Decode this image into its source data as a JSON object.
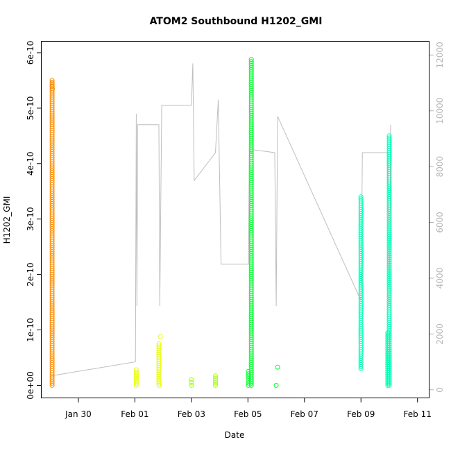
{
  "chart_data": {
    "type": "scatter",
    "title": "ATOM2 Southbound H1202_GMI",
    "xlabel": "Date",
    "ylabel": "H1202_GMI",
    "x_tick_labels": [
      "Jan 30",
      "Feb 01",
      "Feb 03",
      "Feb 05",
      "Feb 07",
      "Feb 09",
      "Feb 11"
    ],
    "x_ticks_day": [
      30,
      32,
      34,
      36,
      38,
      40,
      42
    ],
    "xlim_day": [
      28.7,
      42.4
    ],
    "y_tick_labels": [
      "0e+00",
      "1e-10",
      "2e-10",
      "3e-10",
      "4e-10",
      "5e-10",
      "6e-10"
    ],
    "y_ticks": [
      0,
      1e-10,
      2e-10,
      3e-10,
      4e-10,
      5e-10,
      6e-10
    ],
    "ylim": [
      -2.2e-11,
      6.2e-10
    ],
    "right_axis": {
      "tick_labels": [
        "0",
        "2000",
        "4000",
        "6000",
        "8000",
        "10000",
        "12000"
      ],
      "ticks": [
        0,
        2000,
        4000,
        6000,
        8000,
        10000,
        12000
      ],
      "ylim": [
        -280,
        12480
      ],
      "color": "#b4b4b4"
    },
    "series": [
      {
        "color": "#ff8c00",
        "points": [
          [
            29.07,
            0
          ],
          [
            29.07,
            5.5e-10
          ],
          [
            29.08,
            5.35e-10
          ]
        ]
      },
      {
        "color": "#e6ff00",
        "points": [
          [
            32.05,
            0
          ],
          [
            32.05,
            2.8e-11
          ],
          [
            32.85,
            0
          ],
          [
            32.85,
            7.5e-11
          ],
          [
            32.9,
            8.8e-11
          ]
        ]
      },
      {
        "color": "#a6ff00",
        "points": [
          [
            34.0,
            0
          ],
          [
            34.0,
            1e-11
          ],
          [
            34.85,
            0
          ],
          [
            34.85,
            1.7e-11
          ]
        ]
      },
      {
        "color": "#00ff2e",
        "points": [
          [
            36.02,
            0
          ],
          [
            36.02,
            2.5e-11
          ],
          [
            36.12,
            0
          ],
          [
            36.12,
            5.88e-10
          ],
          [
            37.0,
            0
          ],
          [
            37.05,
            3.3e-11
          ]
        ]
      },
      {
        "color": "#00ffb4",
        "points": [
          [
            40.0,
            3e-11
          ],
          [
            40.0,
            3.4e-10
          ],
          [
            40.95,
            0
          ],
          [
            40.95,
            9.5e-11
          ],
          [
            41.0,
            0
          ],
          [
            41.0,
            4.5e-10
          ]
        ]
      }
    ],
    "depth_line": {
      "color": "#bebebe",
      "points": [
        [
          29.05,
          500
        ],
        [
          32.02,
          1000
        ],
        [
          32.05,
          9900
        ],
        [
          32.07,
          3000
        ],
        [
          32.1,
          9500
        ],
        [
          32.85,
          9500
        ],
        [
          32.88,
          3000
        ],
        [
          32.95,
          10200
        ],
        [
          34.0,
          10200
        ],
        [
          34.05,
          11700
        ],
        [
          34.1,
          7500
        ],
        [
          34.85,
          8500
        ],
        [
          34.95,
          10400
        ],
        [
          35.05,
          4500
        ],
        [
          36.02,
          4500
        ],
        [
          36.05,
          8600
        ],
        [
          36.12,
          8500
        ],
        [
          36.2,
          8600
        ],
        [
          36.95,
          8500
        ],
        [
          37.0,
          3000
        ],
        [
          37.05,
          9800
        ],
        [
          40.0,
          3200
        ],
        [
          40.05,
          8500
        ],
        [
          40.95,
          8500
        ],
        [
          41.0,
          3000
        ],
        [
          41.05,
          9500
        ]
      ]
    }
  }
}
